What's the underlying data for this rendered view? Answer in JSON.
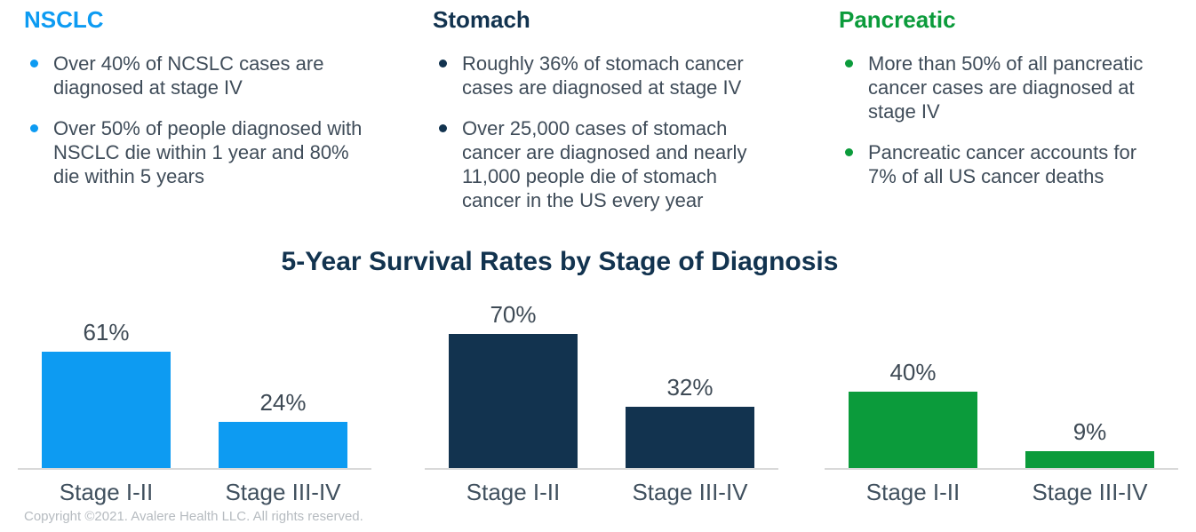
{
  "columns": [
    {
      "title": "NSCLC",
      "color": "#0d9bf2",
      "bullets": [
        "Over 40% of NCSLC cases are\ndiagnosed at stage IV",
        "Over 50% of people diagnosed with\nNSCLC die within 1 year and 80%\ndie within 5 years"
      ]
    },
    {
      "title": "Stomach",
      "color": "#12334f",
      "bullets": [
        "Roughly 36% of stomach cancer\ncases are diagnosed at stage IV",
        "Over 25,000 cases of stomach\ncancer are diagnosed and nearly\n11,000 people die of stomach\ncancer in the US every year"
      ]
    },
    {
      "title": "Pancreatic",
      "color": "#0b9b3b",
      "bullets": [
        "More than 50% of all pancreatic\ncancer cases are diagnosed at\nstage IV",
        "Pancreatic cancer accounts for\n7% of all US cancer deaths"
      ]
    }
  ],
  "chart_data": {
    "type": "bar",
    "title": "5-Year Survival Rates by Stage of Diagnosis",
    "title_color": "#12334f",
    "categories": [
      "Stage I-II",
      "Stage III-IV"
    ],
    "series": [
      {
        "name": "NSCLC",
        "color": "#0d9bf2",
        "values": [
          61,
          24
        ]
      },
      {
        "name": "Stomach",
        "color": "#12334f",
        "values": [
          70,
          32
        ]
      },
      {
        "name": "Pancreatic",
        "color": "#0b9b3b",
        "values": [
          40,
          9
        ]
      }
    ],
    "value_labels": [
      "61%",
      "24%",
      "70%",
      "32%",
      "40%",
      "9%"
    ],
    "ylim": [
      0,
      100
    ],
    "grid": false,
    "legend": "none",
    "axis_color": "#d9d9d9"
  },
  "footer": {
    "copyright": "Copyright ©2021. Avalere Health LLC. All rights reserved."
  }
}
